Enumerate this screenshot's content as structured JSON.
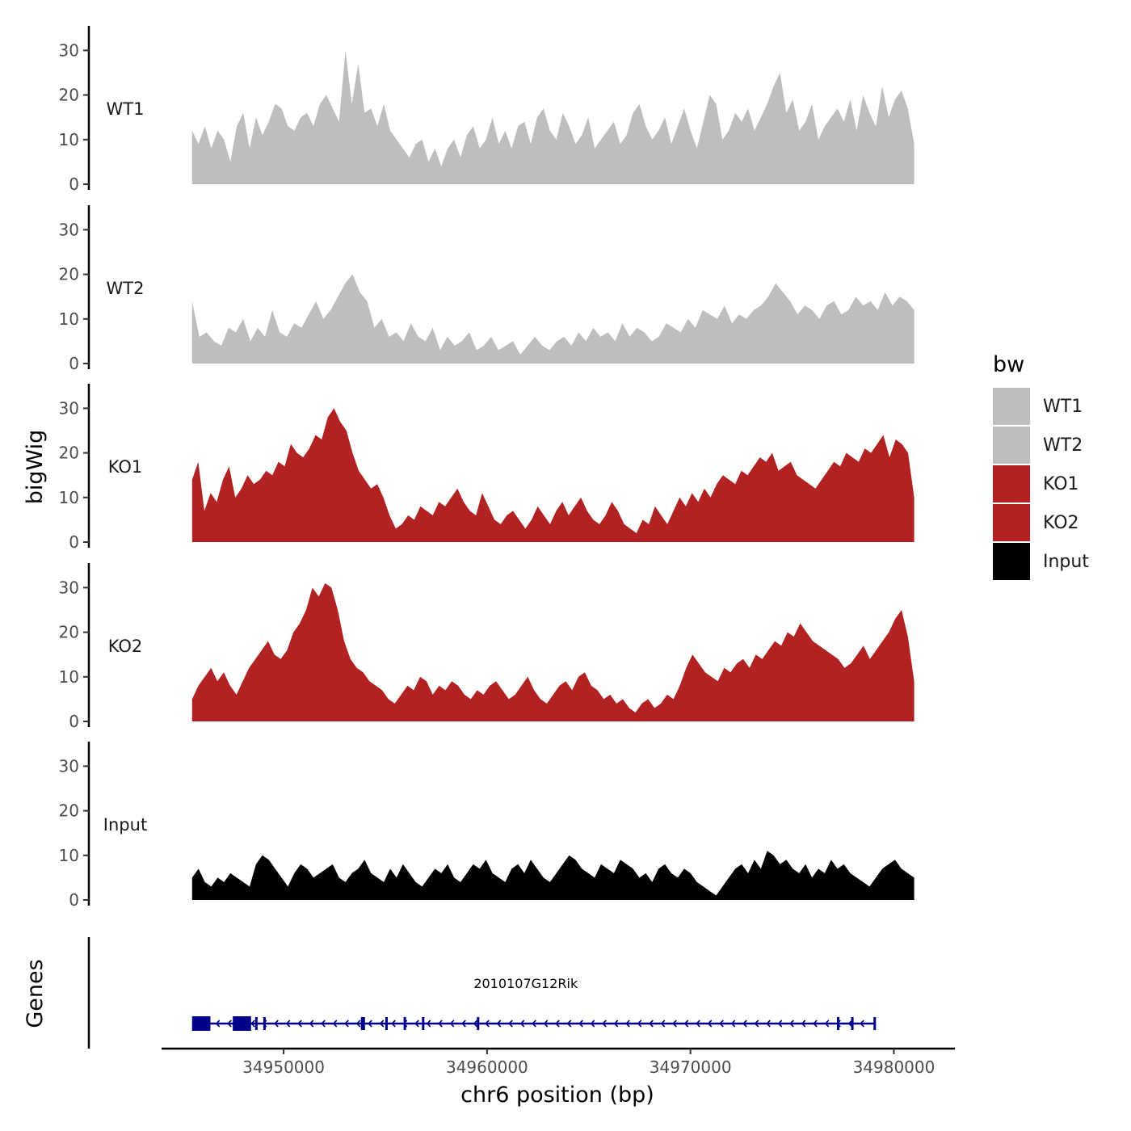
{
  "chart_data": {
    "type": "area",
    "title": "",
    "xlabel": "chr6 position (bp)",
    "ylabel": "bigWig",
    "genes_label": "Genes",
    "xlim": [
      34944000,
      34983000
    ],
    "data_range": [
      34945500,
      34981000
    ],
    "ylim": [
      0,
      35
    ],
    "x_ticks": [
      34950000,
      34960000,
      34970000,
      34980000
    ],
    "x_tick_labels": [
      "34950000",
      "34960000",
      "34970000",
      "34980000"
    ],
    "y_ticks": [
      0,
      10,
      20,
      30
    ],
    "y_tick_labels": [
      "0",
      "10",
      "20",
      "30"
    ],
    "legend": {
      "title": "bw",
      "position": "right",
      "entries": [
        {
          "label": "WT1",
          "color": "#bebebe"
        },
        {
          "label": "WT2",
          "color": "#bebebe"
        },
        {
          "label": "KO1",
          "color": "#b22222"
        },
        {
          "label": "KO2",
          "color": "#b22222"
        },
        {
          "label": "Input",
          "color": "#000000"
        }
      ]
    },
    "series": [
      {
        "name": "WT1",
        "color": "#bebebe",
        "values": [
          12,
          9,
          13,
          8,
          12,
          10,
          5,
          13,
          16,
          8,
          15,
          11,
          14,
          18,
          17,
          13,
          12,
          15,
          16,
          13,
          18,
          20,
          17,
          14,
          30,
          18,
          27,
          16,
          17,
          13,
          18,
          12,
          10,
          8,
          6,
          9,
          10,
          5,
          8,
          4,
          8,
          10,
          6,
          11,
          13,
          8,
          10,
          15,
          9,
          12,
          8,
          13,
          14,
          9,
          15,
          17,
          12,
          10,
          16,
          13,
          9,
          11,
          15,
          8,
          10,
          12,
          14,
          9,
          11,
          16,
          18,
          13,
          10,
          12,
          15,
          9,
          13,
          17,
          12,
          8,
          14,
          20,
          18,
          10,
          12,
          16,
          14,
          17,
          12,
          15,
          18,
          22,
          25,
          16,
          19,
          12,
          14,
          18,
          10,
          13,
          15,
          17,
          14,
          19,
          12,
          20,
          16,
          13,
          22,
          15,
          19,
          21,
          17,
          9
        ]
      },
      {
        "name": "WT2",
        "color": "#bebebe",
        "values": [
          14,
          6,
          7,
          5,
          4,
          8,
          7,
          10,
          5,
          8,
          6,
          12,
          7,
          6,
          9,
          8,
          11,
          14,
          10,
          12,
          15,
          18,
          20,
          16,
          14,
          8,
          10,
          6,
          7,
          5,
          9,
          6,
          5,
          8,
          3,
          6,
          4,
          5,
          7,
          3,
          4,
          6,
          3,
          4,
          5,
          2,
          4,
          6,
          4,
          3,
          5,
          6,
          4,
          7,
          5,
          8,
          6,
          7,
          5,
          9,
          6,
          8,
          7,
          5,
          6,
          9,
          8,
          7,
          10,
          8,
          12,
          11,
          10,
          13,
          9,
          11,
          10,
          12,
          13,
          15,
          18,
          16,
          14,
          11,
          13,
          12,
          10,
          13,
          14,
          11,
          12,
          15,
          13,
          14,
          12,
          16,
          13,
          15,
          14,
          12
        ]
      },
      {
        "name": "KO1",
        "color": "#b22222",
        "values": [
          14,
          18,
          7,
          11,
          9,
          14,
          17,
          10,
          12,
          15,
          13,
          14,
          16,
          15,
          18,
          17,
          22,
          20,
          19,
          21,
          24,
          23,
          28,
          30,
          27,
          25,
          20,
          16,
          14,
          12,
          13,
          10,
          6,
          3,
          4,
          6,
          5,
          8,
          7,
          6,
          9,
          8,
          10,
          12,
          9,
          7,
          6,
          11,
          8,
          5,
          4,
          6,
          7,
          5,
          3,
          5,
          8,
          6,
          4,
          7,
          9,
          6,
          8,
          10,
          7,
          5,
          4,
          6,
          9,
          7,
          4,
          3,
          2,
          5,
          4,
          8,
          6,
          4,
          7,
          10,
          8,
          11,
          9,
          12,
          10,
          13,
          15,
          14,
          13,
          16,
          15,
          17,
          19,
          18,
          20,
          16,
          17,
          18,
          15,
          14,
          13,
          12,
          14,
          16,
          18,
          17,
          20,
          19,
          18,
          21,
          20,
          22,
          24,
          19,
          23,
          22,
          20,
          10
        ]
      },
      {
        "name": "KO2",
        "color": "#b22222",
        "values": [
          5,
          8,
          10,
          12,
          9,
          11,
          8,
          6,
          9,
          12,
          14,
          16,
          18,
          15,
          14,
          16,
          20,
          22,
          25,
          30,
          28,
          31,
          30,
          25,
          18,
          14,
          12,
          11,
          9,
          8,
          7,
          5,
          4,
          6,
          8,
          7,
          10,
          9,
          6,
          8,
          7,
          9,
          8,
          6,
          5,
          7,
          6,
          8,
          9,
          7,
          5,
          6,
          8,
          10,
          7,
          5,
          4,
          6,
          8,
          9,
          7,
          10,
          11,
          8,
          7,
          5,
          6,
          4,
          5,
          3,
          2,
          4,
          5,
          3,
          4,
          6,
          5,
          8,
          12,
          15,
          13,
          11,
          10,
          9,
          12,
          11,
          13,
          14,
          12,
          15,
          14,
          16,
          18,
          17,
          20,
          19,
          22,
          20,
          18,
          17,
          16,
          15,
          14,
          12,
          13,
          15,
          17,
          14,
          16,
          18,
          20,
          23,
          25,
          19,
          9
        ]
      },
      {
        "name": "Input",
        "color": "#000000",
        "values": [
          5,
          7,
          4,
          3,
          5,
          4,
          6,
          5,
          4,
          3,
          8,
          10,
          9,
          7,
          5,
          3,
          6,
          8,
          7,
          5,
          6,
          7,
          8,
          5,
          4,
          6,
          7,
          9,
          6,
          5,
          4,
          7,
          5,
          8,
          6,
          4,
          3,
          5,
          7,
          6,
          8,
          5,
          4,
          6,
          8,
          7,
          9,
          6,
          5,
          4,
          7,
          8,
          6,
          9,
          7,
          5,
          4,
          6,
          8,
          10,
          9,
          7,
          6,
          5,
          8,
          7,
          6,
          9,
          8,
          7,
          5,
          6,
          4,
          7,
          8,
          6,
          5,
          7,
          6,
          4,
          3,
          2,
          1,
          3,
          5,
          7,
          8,
          6,
          9,
          7,
          11,
          10,
          8,
          9,
          7,
          6,
          8,
          5,
          7,
          6,
          9,
          7,
          8,
          6,
          5,
          4,
          3,
          5,
          7,
          8,
          9,
          7,
          6,
          5
        ]
      }
    ],
    "genes": [
      {
        "name": "2010107G12Rik",
        "strand": "-",
        "start": 34945500,
        "end": 34979100,
        "exons": [
          [
            34945500,
            34946400
          ],
          [
            34947500,
            34948400
          ],
          [
            34948600,
            34948700
          ],
          [
            34949000,
            34949100
          ],
          [
            34953800,
            34954000
          ],
          [
            34955000,
            34955100
          ],
          [
            34955900,
            34956000
          ],
          [
            34956800,
            34956900
          ],
          [
            34959500,
            34959600
          ],
          [
            34977200,
            34977300
          ],
          [
            34977900,
            34978000
          ],
          [
            34979000,
            34979100
          ]
        ]
      }
    ]
  }
}
